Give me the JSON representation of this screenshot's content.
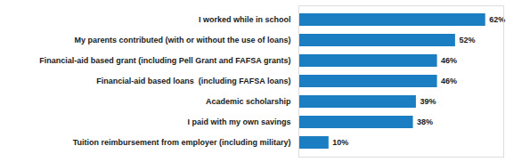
{
  "chart_data": {
    "type": "bar",
    "orientation": "horizontal",
    "categories": [
      "Tuition reimbursement from employer (including military)",
      "I paid with my own savings",
      "Academic scholarship",
      "Financial-aid based loans  (including FAFSA loans)",
      "Financial-aid based grant (including Pell Grant and FAFSA grants)",
      "My parents contributed (with or without the use of loans)",
      "I worked while in school"
    ],
    "values": [
      10,
      38,
      39,
      46,
      46,
      52,
      62
    ],
    "value_labels": [
      "10%",
      "38%",
      "39%",
      "46%",
      "46%",
      "52%",
      "62%"
    ],
    "color": "#1b7ec2",
    "xlim": [
      0,
      68
    ],
    "data_labels": true,
    "tick_labels": "y",
    "grid": false
  }
}
